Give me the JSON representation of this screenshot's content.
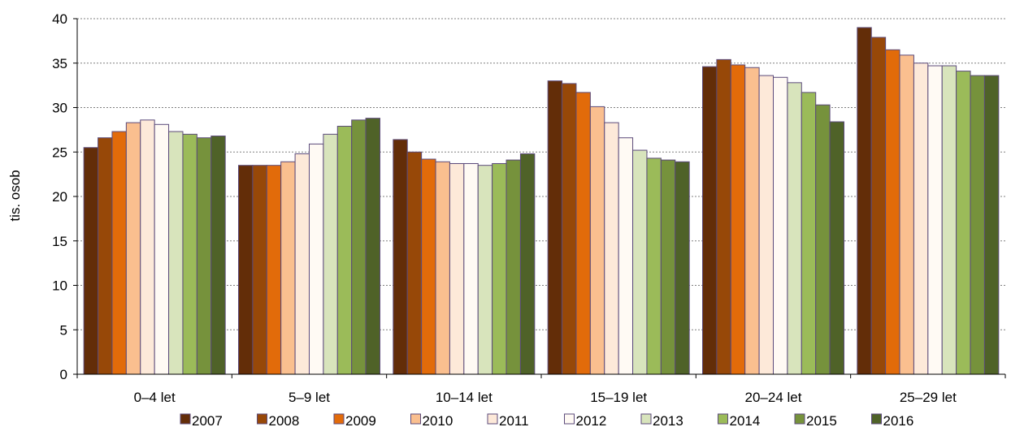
{
  "chart_data": {
    "type": "bar",
    "ylabel": "tis. osob",
    "ylim": [
      0,
      40
    ],
    "ytick_step": 5,
    "grid": true,
    "legend_position": "bottom",
    "categories": [
      "0–4 let",
      "5–9 let",
      "10–14 let",
      "15–19 let",
      "20–24 let",
      "25–29 let"
    ],
    "series": [
      {
        "name": "2007",
        "color": "#632d08",
        "values": [
          25.5,
          23.5,
          26.4,
          33.0,
          34.6,
          39.0
        ]
      },
      {
        "name": "2008",
        "color": "#974808",
        "values": [
          26.6,
          23.5,
          25.0,
          32.7,
          35.4,
          37.9
        ]
      },
      {
        "name": "2009",
        "color": "#e26b0a",
        "values": [
          27.3,
          23.5,
          24.2,
          31.7,
          34.8,
          36.5
        ]
      },
      {
        "name": "2010",
        "color": "#fabf8f",
        "values": [
          28.3,
          23.9,
          23.9,
          30.1,
          34.5,
          35.9
        ]
      },
      {
        "name": "2011",
        "color": "#fde9d9",
        "values": [
          28.6,
          24.8,
          23.7,
          28.3,
          33.6,
          35.0
        ]
      },
      {
        "name": "2012",
        "color": "#fffaf4",
        "values": [
          28.1,
          25.9,
          23.7,
          26.6,
          33.4,
          34.7
        ]
      },
      {
        "name": "2013",
        "color": "#d8e4bc",
        "values": [
          27.3,
          27.0,
          23.5,
          25.2,
          32.8,
          34.7
        ]
      },
      {
        "name": "2014",
        "color": "#9bbb59",
        "values": [
          27.0,
          27.9,
          23.7,
          24.3,
          31.7,
          34.1
        ]
      },
      {
        "name": "2015",
        "color": "#76923c",
        "values": [
          26.6,
          28.6,
          24.1,
          24.1,
          30.3,
          33.6
        ]
      },
      {
        "name": "2016",
        "color": "#4f6228",
        "values": [
          26.8,
          28.8,
          24.8,
          23.9,
          28.4,
          33.6
        ]
      }
    ]
  }
}
